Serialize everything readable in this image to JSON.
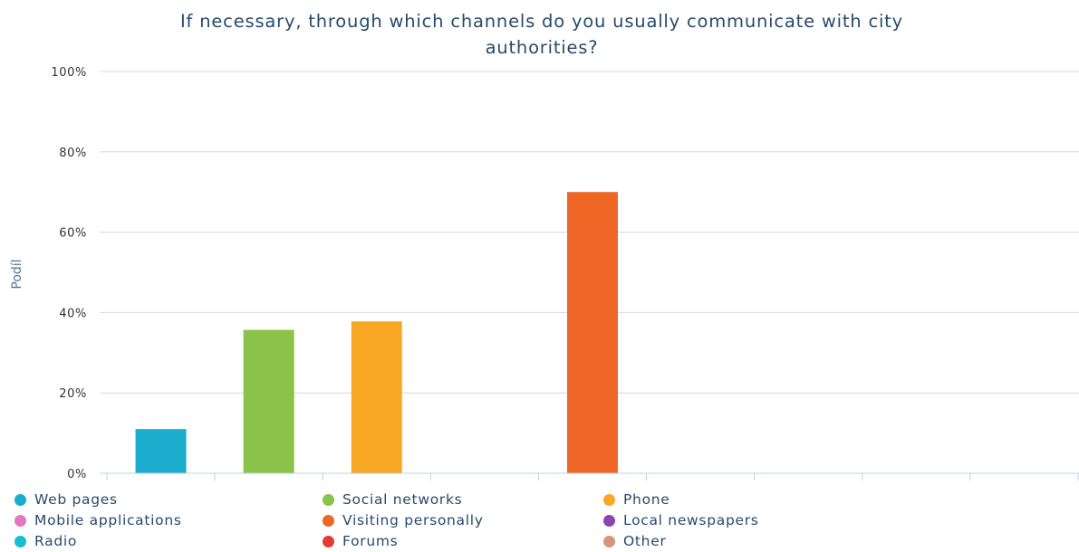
{
  "chart_data": {
    "type": "bar",
    "title": "If necessary, through which channels do you usually communicate with city authorities?",
    "title_lines": [
      "If necessary, through which channels do you usually communicate with city",
      "authorities?"
    ],
    "ylabel": "Podíl",
    "ylim": [
      0,
      100
    ],
    "yticks": [
      "0%",
      "20%",
      "40%",
      "60%",
      "80%",
      "100%"
    ],
    "grid": true,
    "legend_position": "bottom",
    "series": [
      {
        "name": "Web pages",
        "value": 11,
        "color": "#1aadce"
      },
      {
        "name": "Social networks",
        "value": 35.7,
        "color": "#8bc34a"
      },
      {
        "name": "Phone",
        "value": 37.8,
        "color": "#f9a825"
      },
      {
        "name": "Mobile applications",
        "value": 0,
        "color": "#e377c2"
      },
      {
        "name": "Visiting personally",
        "value": 70,
        "color": "#ef6727"
      },
      {
        "name": "Local newspapers",
        "value": 0,
        "color": "#8e44ad"
      },
      {
        "name": "Radio",
        "value": 0,
        "color": "#17becf"
      },
      {
        "name": "Forums",
        "value": 0,
        "color": "#e53935"
      },
      {
        "name": "Other",
        "value": 0,
        "color": "#d4967a"
      }
    ]
  }
}
